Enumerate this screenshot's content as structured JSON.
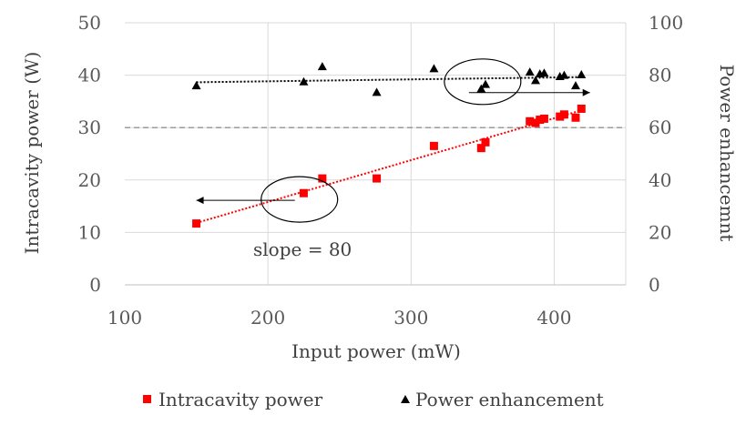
{
  "chart_data": {
    "type": "scatter",
    "title": "",
    "xlabel": "Input power (mW)",
    "ylabel": "Intracavity power (W)",
    "y2label": "Power enhancemnt",
    "xlim": [
      100,
      450
    ],
    "ylim": [
      0,
      50
    ],
    "y2lim": [
      0,
      100
    ],
    "xticks": [
      100,
      200,
      300,
      400
    ],
    "yticks": [
      0,
      10,
      20,
      30,
      40,
      50
    ],
    "y2ticks": [
      0,
      20,
      40,
      60,
      80,
      100
    ],
    "grid": true,
    "legend_position": "bottom",
    "series": [
      {
        "name": "Intracavity power",
        "axis": "left",
        "marker": "square",
        "color": "#ff0000",
        "trendline": "linear",
        "points": [
          [
            150,
            11.7
          ],
          [
            225,
            17.5
          ],
          [
            238,
            20.3
          ],
          [
            276,
            20.3
          ],
          [
            316,
            26.5
          ],
          [
            349,
            26.1
          ],
          [
            352,
            27.2
          ],
          [
            383,
            31.2
          ],
          [
            387,
            30.9
          ],
          [
            390,
            31.5
          ],
          [
            393,
            31.7
          ],
          [
            404,
            32.1
          ],
          [
            407,
            32.5
          ],
          [
            415,
            31.9
          ],
          [
            419,
            33.6
          ]
        ]
      },
      {
        "name": "Power enhancement",
        "axis": "right",
        "marker": "triangle",
        "color": "#000000",
        "trendline": "linear",
        "points": [
          [
            150,
            76
          ],
          [
            225,
            77.5
          ],
          [
            238,
            83.3
          ],
          [
            276,
            73.5
          ],
          [
            316,
            82.5
          ],
          [
            349,
            74.8
          ],
          [
            352,
            76.5
          ],
          [
            383,
            81.2
          ],
          [
            387,
            78
          ],
          [
            390,
            80.5
          ],
          [
            393,
            80.8
          ],
          [
            404,
            79.5
          ],
          [
            407,
            80
          ],
          [
            415,
            76
          ],
          [
            419,
            80.2
          ]
        ]
      }
    ],
    "reference_line": {
      "axis": "left",
      "value": 30,
      "style": "dashed",
      "color": "#808080"
    },
    "annotations": [
      {
        "text": "slope = 80"
      }
    ],
    "series_marker_circles": [
      {
        "series": "Intracavity power",
        "center": [
          222,
          16.3
        ],
        "arrow_to_x": 150,
        "arrow_dir": "left"
      },
      {
        "series": "Power enhancement",
        "center": [
          350,
          77.5
        ],
        "arrow_to_x": 425,
        "arrow_dir": "right"
      }
    ]
  }
}
